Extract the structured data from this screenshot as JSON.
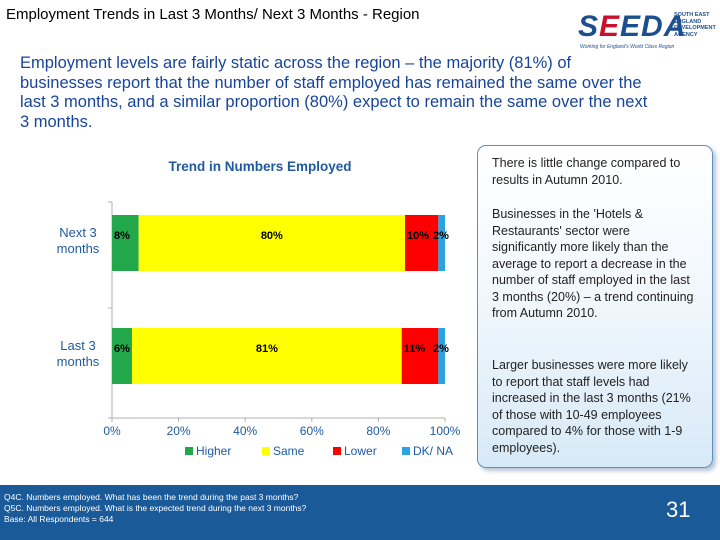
{
  "page": {
    "title": "Employment Trends in Last 3 Months/ Next 3 Months - Region",
    "number": "31"
  },
  "logo": {
    "wordmark": "SEEDA",
    "side_text": "SOUTH EAST ENGLAND DEVELOPMENT AGENCY",
    "tagline": "Working for England's World Class Region"
  },
  "intro": "Employment levels are fairly static across the region – the majority (81%) of businesses report that the number of staff employed has remained the same over the last 3 months, and a similar proportion (80%) expect to remain the same over the next 3 months.",
  "sidebar": {
    "paragraphs": [
      "There is little change compared to results in Autumn 2010.",
      "Businesses in the 'Hotels & Restaurants' sector were significantly more likely than the average to report a decrease in the number of staff employed in the last 3 months (20%) – a trend continuing from Autumn 2010.",
      "Larger businesses were more likely to report that staff levels had increased in the last 3 months (21% of those with 10-49 employees compared to 4% for those with 1-9 employees)."
    ]
  },
  "footer": {
    "notes": [
      "Q4C. Numbers employed. What has been the trend during the past 3 months?",
      "Q5C. Numbers employed. What is the expected trend during the next 3 months?",
      "Base: All Respondents = 644"
    ]
  },
  "chart_data": {
    "type": "bar",
    "orientation": "horizontal",
    "stacked": true,
    "title": "Trend in Numbers Employed",
    "categories": [
      "Next 3 months",
      "Last 3 months"
    ],
    "category_lines": [
      [
        "Next 3",
        "months"
      ],
      [
        "Last 3",
        "months"
      ]
    ],
    "series": [
      {
        "name": "Higher",
        "color": "#22a84a",
        "values": [
          8,
          6
        ],
        "labels": [
          "8%",
          "6%"
        ]
      },
      {
        "name": "Same",
        "color": "#ffff00",
        "values": [
          80,
          81
        ],
        "labels": [
          "80%",
          "81%"
        ]
      },
      {
        "name": "Lower",
        "color": "#ff0000",
        "values": [
          10,
          11
        ],
        "labels": [
          "10%",
          "11%"
        ]
      },
      {
        "name": "DK/ NA",
        "color": "#2aa3e0",
        "values": [
          2,
          2
        ],
        "labels": [
          "2%",
          "2%"
        ]
      }
    ],
    "xlim": [
      0,
      100
    ],
    "x_ticks": [
      "0%",
      "20%",
      "40%",
      "60%",
      "80%",
      "100%"
    ],
    "xlabel": "",
    "ylabel": "",
    "legend_position": "bottom"
  }
}
